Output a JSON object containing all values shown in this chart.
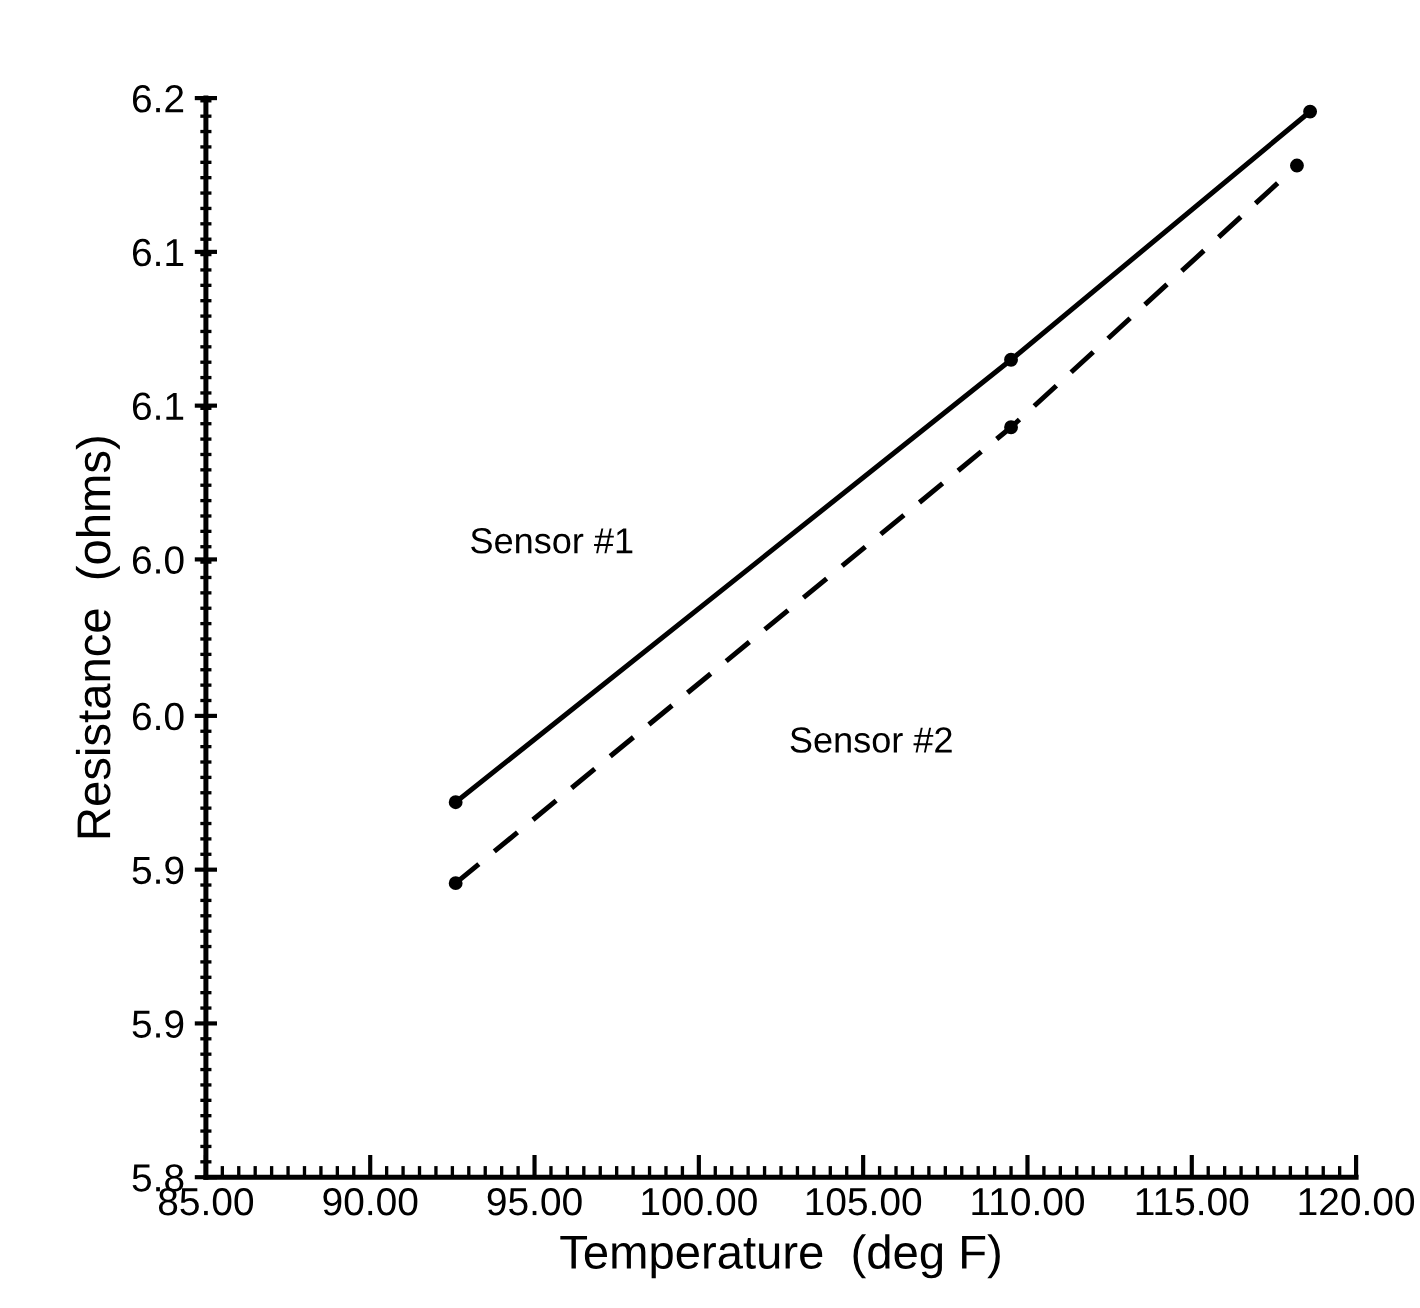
{
  "chart_data": {
    "type": "line",
    "xlabel": "Temperature  (deg F)",
    "ylabel": "Resistance  (ohms)",
    "xlim": [
      85,
      120
    ],
    "ylim": [
      5.8,
      6.2
    ],
    "xticks": [
      {
        "value": 85,
        "label": "85.00"
      },
      {
        "value": 90,
        "label": "90.00"
      },
      {
        "value": 95,
        "label": "95.00"
      },
      {
        "value": 100,
        "label": "100.00"
      },
      {
        "value": 105,
        "label": "105.00"
      },
      {
        "value": 110,
        "label": "110.00"
      },
      {
        "value": 115,
        "label": "115.00"
      },
      {
        "value": 120,
        "label": "120.00"
      }
    ],
    "yticks": [
      5.8,
      {
        "value": 5.857,
        "label": "5.9"
      },
      {
        "value": 5.914,
        "label": "5.9"
      },
      {
        "value": 5.971,
        "label": "6.0"
      },
      {
        "value": 6.029,
        "label": "6.0"
      },
      {
        "value": 6.086,
        "label": "6.1"
      },
      {
        "value": 6.143,
        "label": "6.1"
      },
      6.2
    ],
    "marker": "circle",
    "grid": false,
    "legend": false,
    "series": [
      {
        "name": "Sensor #1",
        "color": "#000000",
        "line_style": "solid",
        "x": [
          92.6,
          109.5,
          118.6
        ],
        "values": [
          5.939,
          6.103,
          6.195
        ]
      },
      {
        "name": "Sensor #2",
        "color": "#000000",
        "line_style": "dashed",
        "x": [
          92.6,
          109.5,
          118.2
        ],
        "values": [
          5.909,
          6.078,
          6.175
        ]
      }
    ]
  }
}
